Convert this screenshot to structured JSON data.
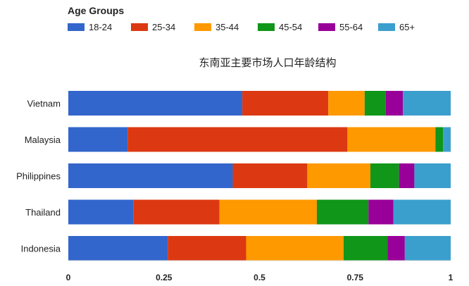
{
  "chart_data": {
    "type": "bar",
    "orientation": "horizontal",
    "stacked": true,
    "title": "东南亚主要市场人口年龄结构",
    "legend_title": "Age Groups",
    "legend_position": "top-left",
    "categories": [
      "Vietnam",
      "Malaysia",
      "Philippines",
      "Thailand",
      "Indonesia"
    ],
    "series": [
      {
        "name": "18-24",
        "color": "#3366cc",
        "values": [
          0.455,
          0.155,
          0.43,
          0.17,
          0.26
        ]
      },
      {
        "name": "25-34",
        "color": "#dc3912",
        "values": [
          0.225,
          0.575,
          0.195,
          0.225,
          0.205
        ]
      },
      {
        "name": "35-44",
        "color": "#ff9900",
        "values": [
          0.095,
          0.23,
          0.165,
          0.255,
          0.255
        ]
      },
      {
        "name": "45-54",
        "color": "#109618",
        "values": [
          0.055,
          0.02,
          0.075,
          0.135,
          0.115
        ]
      },
      {
        "name": "55-64",
        "color": "#990099",
        "values": [
          0.045,
          0.0,
          0.04,
          0.065,
          0.045
        ]
      },
      {
        "name": "65+",
        "color": "#3b9fce",
        "values": [
          0.125,
          0.02,
          0.095,
          0.15,
          0.12
        ]
      }
    ],
    "xlim": [
      0,
      1
    ],
    "xticks": [
      "0",
      "0.25",
      "0.5",
      "0.75",
      "1"
    ],
    "xtick_values": [
      0,
      0.25,
      0.5,
      0.75,
      1
    ],
    "xlabel": "",
    "ylabel": "",
    "grid": false
  }
}
